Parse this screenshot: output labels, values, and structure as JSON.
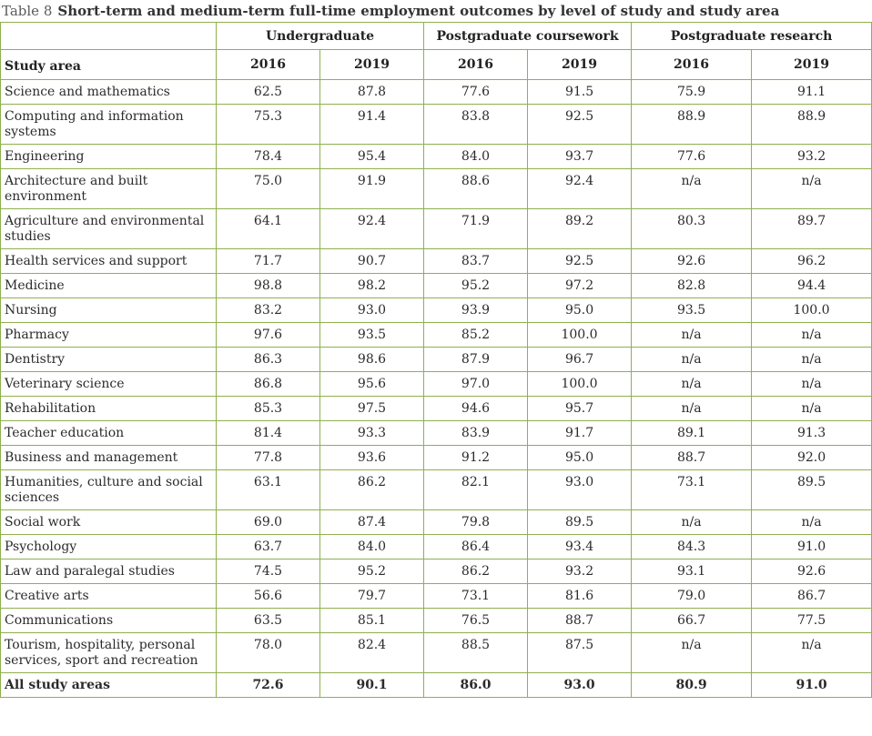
{
  "caption": {
    "number": "Table 8",
    "title": "Short-term and medium-term full-time employment outcomes by level of study and study area"
  },
  "headers": {
    "groups": [
      "Undergraduate",
      "Postgraduate coursework",
      "Postgraduate research"
    ],
    "row_label": "Study area",
    "years": [
      "2016",
      "2019",
      "2016",
      "2019",
      "2016",
      "2019"
    ]
  },
  "rows": [
    {
      "area": "Science and mathematics",
      "values": [
        "62.5",
        "87.8",
        "77.6",
        "91.5",
        "75.9",
        "91.1"
      ]
    },
    {
      "area": "Computing and information systems",
      "values": [
        "75.3",
        "91.4",
        "83.8",
        "92.5",
        "88.9",
        "88.9"
      ]
    },
    {
      "area": "Engineering",
      "values": [
        "78.4",
        "95.4",
        "84.0",
        "93.7",
        "77.6",
        "93.2"
      ]
    },
    {
      "area": "Architecture and built environment",
      "values": [
        "75.0",
        "91.9",
        "88.6",
        "92.4",
        "n/a",
        "n/a"
      ]
    },
    {
      "area": "Agriculture and environmental studies",
      "values": [
        "64.1",
        "92.4",
        "71.9",
        "89.2",
        "80.3",
        "89.7"
      ]
    },
    {
      "area": "Health services and support",
      "values": [
        "71.7",
        "90.7",
        "83.7",
        "92.5",
        "92.6",
        "96.2"
      ]
    },
    {
      "area": "Medicine",
      "values": [
        "98.8",
        "98.2",
        "95.2",
        "97.2",
        "82.8",
        "94.4"
      ]
    },
    {
      "area": "Nursing",
      "values": [
        "83.2",
        "93.0",
        "93.9",
        "95.0",
        "93.5",
        "100.0"
      ]
    },
    {
      "area": "Pharmacy",
      "values": [
        "97.6",
        "93.5",
        "85.2",
        "100.0",
        "n/a",
        "n/a"
      ]
    },
    {
      "area": "Dentistry",
      "values": [
        "86.3",
        "98.6",
        "87.9",
        "96.7",
        "n/a",
        "n/a"
      ]
    },
    {
      "area": "Veterinary science",
      "values": [
        "86.8",
        "95.6",
        "97.0",
        "100.0",
        "n/a",
        "n/a"
      ]
    },
    {
      "area": "Rehabilitation",
      "values": [
        "85.3",
        "97.5",
        "94.6",
        "95.7",
        "n/a",
        "n/a"
      ]
    },
    {
      "area": "Teacher education",
      "values": [
        "81.4",
        "93.3",
        "83.9",
        "91.7",
        "89.1",
        "91.3"
      ]
    },
    {
      "area": "Business and management",
      "values": [
        "77.8",
        "93.6",
        "91.2",
        "95.0",
        "88.7",
        "92.0"
      ]
    },
    {
      "area": "Humanities, culture and social sciences",
      "values": [
        "63.1",
        "86.2",
        "82.1",
        "93.0",
        "73.1",
        "89.5"
      ]
    },
    {
      "area": "Social work",
      "values": [
        "69.0",
        "87.4",
        "79.8",
        "89.5",
        "n/a",
        "n/a"
      ]
    },
    {
      "area": "Psychology",
      "values": [
        "63.7",
        "84.0",
        "86.4",
        "93.4",
        "84.3",
        "91.0"
      ]
    },
    {
      "area": "Law and paralegal studies",
      "values": [
        "74.5",
        "95.2",
        "86.2",
        "93.2",
        "93.1",
        "92.6"
      ]
    },
    {
      "area": "Creative arts",
      "values": [
        "56.6",
        "79.7",
        "73.1",
        "81.6",
        "79.0",
        "86.7"
      ]
    },
    {
      "area": "Communications",
      "values": [
        "63.5",
        "85.1",
        "76.5",
        "88.7",
        "66.7",
        "77.5"
      ]
    },
    {
      "area": "Tourism, hospitality, personal services, sport and recreation",
      "values": [
        "78.0",
        "82.4",
        "88.5",
        "87.5",
        "n/a",
        "n/a"
      ]
    }
  ],
  "total": {
    "area": "All study areas",
    "values": [
      "72.6",
      "90.1",
      "86.0",
      "93.0",
      "80.9",
      "91.0"
    ]
  },
  "colors": {
    "border": "#8fb04f",
    "text": "#2b2b2b"
  }
}
